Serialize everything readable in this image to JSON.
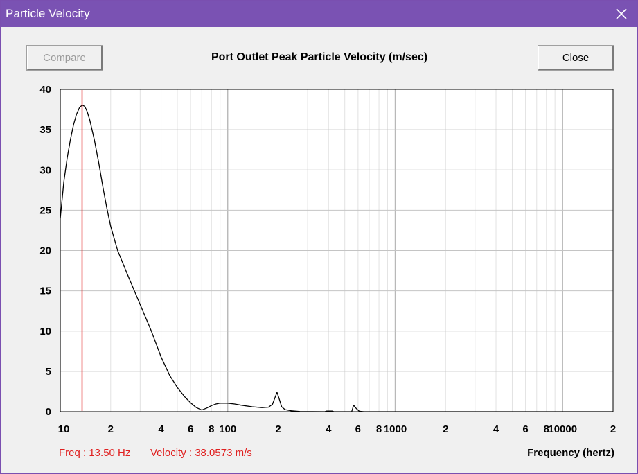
{
  "window": {
    "title": "Particle Velocity"
  },
  "toolbar": {
    "compare_label": "Compare",
    "close_label": "Close"
  },
  "status": {
    "freq": "Freq : 13.50 Hz",
    "velocity": "Velocity : 38.0573 m/s",
    "color": "#e02020"
  },
  "chart_data": {
    "type": "line",
    "title": "Port Outlet Peak Particle Velocity (m/sec)",
    "xlabel": "Frequency (hertz)",
    "ylabel": "",
    "xscale": "log",
    "xlim": [
      10,
      20000
    ],
    "ylim": [
      0,
      40
    ],
    "grid": true,
    "yticks": [
      0,
      5,
      10,
      15,
      20,
      25,
      30,
      35,
      40
    ],
    "xticks": [
      {
        "value": 10,
        "label": "10"
      },
      {
        "value": 20,
        "label": "2"
      },
      {
        "value": 40,
        "label": "4"
      },
      {
        "value": 60,
        "label": "6"
      },
      {
        "value": 80,
        "label": "8"
      },
      {
        "value": 100,
        "label": "100"
      },
      {
        "value": 200,
        "label": "2"
      },
      {
        "value": 400,
        "label": "4"
      },
      {
        "value": 600,
        "label": "6"
      },
      {
        "value": 800,
        "label": "8"
      },
      {
        "value": 1000,
        "label": "1000"
      },
      {
        "value": 2000,
        "label": "2"
      },
      {
        "value": 4000,
        "label": "4"
      },
      {
        "value": 6000,
        "label": "6"
      },
      {
        "value": 8000,
        "label": "8"
      },
      {
        "value": 10000,
        "label": "10000"
      },
      {
        "value": 20000,
        "label": "2"
      }
    ],
    "cursor": {
      "x": 13.5,
      "color": "#e02020"
    },
    "series": [
      {
        "color": "#000000",
        "points": [
          [
            10,
            24
          ],
          [
            10.5,
            28.5
          ],
          [
            11,
            31.5
          ],
          [
            11.5,
            33.8
          ],
          [
            12,
            35.6
          ],
          [
            12.5,
            36.9
          ],
          [
            13,
            37.7
          ],
          [
            13.5,
            38.06
          ],
          [
            14,
            37.9
          ],
          [
            14.5,
            37.2
          ],
          [
            15,
            36.2
          ],
          [
            16,
            33.7
          ],
          [
            17,
            30.8
          ],
          [
            18,
            27.8
          ],
          [
            19,
            25.2
          ],
          [
            20,
            23
          ],
          [
            22,
            20
          ],
          [
            25,
            17.2
          ],
          [
            30,
            13.3
          ],
          [
            35,
            10
          ],
          [
            40,
            6.8
          ],
          [
            45,
            4.5
          ],
          [
            50,
            3
          ],
          [
            55,
            1.9
          ],
          [
            60,
            1.1
          ],
          [
            65,
            0.5
          ],
          [
            70,
            0.2
          ],
          [
            75,
            0.45
          ],
          [
            80,
            0.75
          ],
          [
            85,
            0.95
          ],
          [
            90,
            1.05
          ],
          [
            100,
            1.05
          ],
          [
            110,
            0.95
          ],
          [
            120,
            0.8
          ],
          [
            140,
            0.6
          ],
          [
            160,
            0.5
          ],
          [
            175,
            0.55
          ],
          [
            185,
            0.9
          ],
          [
            192,
            1.8
          ],
          [
            197,
            2.4
          ],
          [
            202,
            1.7
          ],
          [
            210,
            0.6
          ],
          [
            220,
            0.25
          ],
          [
            240,
            0.1
          ],
          [
            270,
            0.02
          ],
          [
            380,
            0
          ],
          [
            390,
            0.08
          ],
          [
            420,
            0.08
          ],
          [
            430,
            0
          ],
          [
            550,
            0
          ],
          [
            565,
            0.8
          ],
          [
            585,
            0.4
          ],
          [
            610,
            0.05
          ],
          [
            650,
            0
          ],
          [
            20000,
            0
          ]
        ]
      }
    ]
  }
}
